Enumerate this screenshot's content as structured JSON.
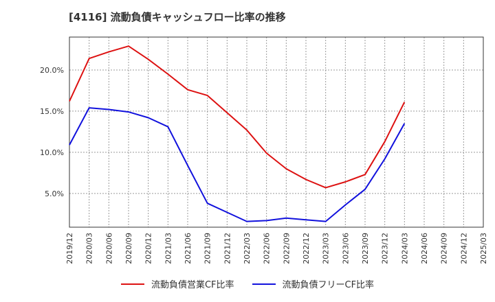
{
  "colors": {
    "operating": "#dd1111",
    "free": "#1111dd",
    "grid": "#999999",
    "axis": "#333333",
    "plot_bg": "#ffffff"
  },
  "chart_data": {
    "type": "line",
    "title": "[4116]  流動負債キャッシュフロー比率の推移",
    "x": [
      "2019/12",
      "2020/03",
      "2020/06",
      "2020/09",
      "2020/12",
      "2021/03",
      "2021/06",
      "2021/09",
      "2021/12",
      "2022/03",
      "2022/06",
      "2022/09",
      "2022/12",
      "2023/03",
      "2023/06",
      "2023/09",
      "2023/12",
      "2024/03",
      "2024/06",
      "2024/09",
      "2024/12",
      "2025/03"
    ],
    "ylim": [
      0.9,
      24.0
    ],
    "yticks": [
      5.0,
      10.0,
      15.0,
      20.0
    ],
    "ytick_labels": [
      "5.0%",
      "10.0%",
      "15.0%",
      "20.0%"
    ],
    "grid": true,
    "legend_position": "bottom",
    "series": [
      {
        "name": "流動負債営業CF比率",
        "color_key": "operating",
        "values": [
          16.2,
          21.4,
          22.2,
          22.9,
          21.3,
          19.5,
          17.6,
          16.9,
          14.8,
          12.7,
          9.9,
          8.0,
          6.7,
          5.7,
          6.4,
          7.3,
          11.3,
          16.1,
          null,
          null,
          null,
          null
        ]
      },
      {
        "name": "流動負債フリーCF比率",
        "color_key": "free",
        "values": [
          10.9,
          15.4,
          15.2,
          14.9,
          14.2,
          13.1,
          8.4,
          3.8,
          2.7,
          1.6,
          1.7,
          2.0,
          1.8,
          1.6,
          3.6,
          5.5,
          9.2,
          13.5,
          null,
          null,
          null,
          null
        ]
      }
    ]
  }
}
